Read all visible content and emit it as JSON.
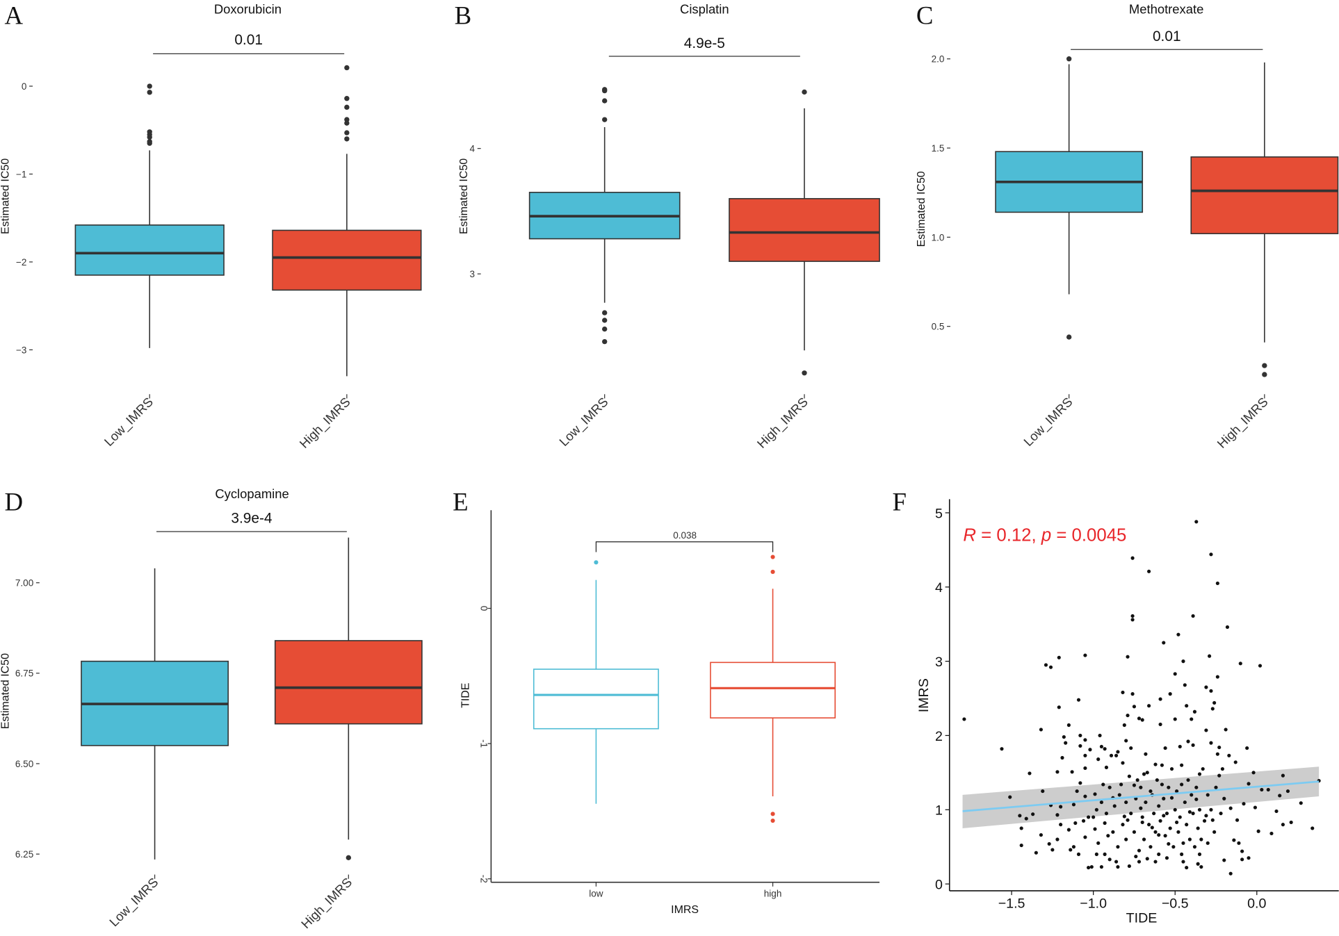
{
  "colors": {
    "low": "#4ebcd5",
    "high": "#e64d35",
    "outline": "#333333",
    "points": "#111111",
    "fit": "#7ccbf2",
    "band": "#c8c8c8",
    "annotation": "#e8262a"
  },
  "chart_data": [
    {
      "panel": "A",
      "type": "box",
      "title": "Doxorubicin",
      "ylabel": "Estimated IC50",
      "xlabel": "",
      "categories": [
        "Low_IMRS",
        "High_IMRS"
      ],
      "yticks": [
        {
          "v": 0,
          "label": "0"
        },
        {
          "v": -1,
          "label": "−1"
        },
        {
          "v": -2,
          "label": "−2"
        },
        {
          "v": -3,
          "label": "−3"
        }
      ],
      "boxes": [
        {
          "q1": -2.15,
          "median": -1.9,
          "q3": -1.58,
          "lower": -2.98,
          "upper": -0.73,
          "outliers": [
            0.0,
            -0.07,
            -0.52,
            -0.55,
            -0.58,
            -0.63,
            -0.65
          ]
        },
        {
          "q1": -2.32,
          "median": -1.95,
          "q3": -1.64,
          "lower": -3.3,
          "upper": -0.77,
          "outliers": [
            0.21,
            -0.14,
            -0.24,
            -0.38,
            -0.42,
            -0.53,
            -0.6
          ]
        }
      ],
      "pvalue": "0.01",
      "style": "filled"
    },
    {
      "panel": "B",
      "type": "box",
      "title": "Cisplatin",
      "ylabel": "Estimated IC50",
      "xlabel": "",
      "categories": [
        "Low_IMRS",
        "High_IMRS"
      ],
      "yticks": [
        {
          "v": 4,
          "label": "4"
        },
        {
          "v": 3,
          "label": "3"
        }
      ],
      "boxes": [
        {
          "q1": 3.28,
          "median": 3.46,
          "q3": 3.65,
          "lower": 2.77,
          "upper": 4.17,
          "outliers": [
            4.47,
            4.46,
            4.38,
            4.23,
            2.69,
            2.63,
            2.56,
            2.46
          ]
        },
        {
          "q1": 3.1,
          "median": 3.33,
          "q3": 3.6,
          "lower": 2.39,
          "upper": 4.32,
          "outliers": [
            4.45,
            2.21
          ]
        }
      ],
      "pvalue": "4.9e-5",
      "style": "filled"
    },
    {
      "panel": "C",
      "type": "box",
      "title": "Methotrexate",
      "ylabel": "Estimated IC50",
      "xlabel": "",
      "categories": [
        "Low_IMRS",
        "High_IMRS"
      ],
      "yticks": [
        {
          "v": 2.0,
          "label": "2.0"
        },
        {
          "v": 1.5,
          "label": "1.5"
        },
        {
          "v": 1.0,
          "label": "1.0"
        },
        {
          "v": 0.5,
          "label": "0.5"
        }
      ],
      "boxes": [
        {
          "q1": 1.14,
          "median": 1.31,
          "q3": 1.48,
          "lower": 0.68,
          "upper": 1.97,
          "outliers": [
            2.0,
            0.44
          ]
        },
        {
          "q1": 1.02,
          "median": 1.26,
          "q3": 1.45,
          "lower": 0.41,
          "upper": 1.98,
          "outliers": [
            0.28,
            0.23
          ]
        }
      ],
      "pvalue": "0.01",
      "style": "filled"
    },
    {
      "panel": "D",
      "type": "box",
      "title": "Cyclopamine",
      "ylabel": "Estimated IC50",
      "xlabel": "",
      "categories": [
        "Low_IMRS",
        "High_IMRS"
      ],
      "yticks": [
        {
          "v": 7.0,
          "label": "7.00"
        },
        {
          "v": 6.75,
          "label": "6.75"
        },
        {
          "v": 6.5,
          "label": "6.50"
        },
        {
          "v": 6.25,
          "label": "6.25"
        }
      ],
      "boxes": [
        {
          "q1": 6.55,
          "median": 6.665,
          "q3": 6.783,
          "lower": 6.235,
          "upper": 7.04,
          "outliers": []
        },
        {
          "q1": 6.61,
          "median": 6.71,
          "q3": 6.84,
          "lower": 6.29,
          "upper": 7.125,
          "outliers": [
            6.24
          ]
        }
      ],
      "pvalue": "3.9e-4",
      "style": "filled"
    },
    {
      "panel": "E",
      "type": "box",
      "title": "",
      "ylabel": "TIDE",
      "xlabel": "IMRS",
      "categories": [
        "low",
        "high"
      ],
      "yticks": [
        {
          "v": 0,
          "label": "0"
        },
        {
          "v": -1,
          "label": "-1"
        },
        {
          "v": -2,
          "label": "-2"
        }
      ],
      "boxes": [
        {
          "q1": -0.89,
          "median": -0.64,
          "q3": -0.45,
          "lower": -1.445,
          "upper": 0.21,
          "outliers": [
            0.34
          ]
        },
        {
          "q1": -0.81,
          "median": -0.59,
          "q3": -0.4,
          "lower": -1.39,
          "upper": 0.145,
          "outliers": [
            0.38,
            0.27,
            -1.52,
            -1.57
          ]
        }
      ],
      "pvalue": "0.038",
      "style": "outline"
    },
    {
      "panel": "F",
      "type": "scatter",
      "title": "",
      "xlabel": "TIDE",
      "ylabel": "IMRS",
      "xlim": [
        -1.87,
        0.42
      ],
      "ylim": [
        -0.1,
        5.1
      ],
      "xticks": [
        {
          "v": -1.5,
          "label": "−1.5"
        },
        {
          "v": -1.0,
          "label": "−1.0"
        },
        {
          "v": -0.5,
          "label": "−0.5"
        },
        {
          "v": 0.0,
          "label": "0.0"
        }
      ],
      "yticks": [
        {
          "v": 0,
          "label": "0"
        },
        {
          "v": 1,
          "label": "1"
        },
        {
          "v": 2,
          "label": "2"
        },
        {
          "v": 3,
          "label": "3"
        },
        {
          "v": 4,
          "label": "4"
        },
        {
          "v": 5,
          "label": "5"
        }
      ],
      "annotation": {
        "r_sym": "R",
        "r_text": " = 0.12, ",
        "p_sym": "p",
        "p_text": " = 0.0045"
      },
      "fit": {
        "x": [
          -1.8,
          0.38
        ],
        "y": [
          0.98,
          1.38
        ],
        "ci_lower": [
          0.75,
          1.18
        ],
        "ci_upper": [
          1.2,
          1.58
        ]
      },
      "points": [
        [
          -1.79,
          2.22
        ],
        [
          -1.56,
          1.82
        ],
        [
          -1.51,
          1.17
        ],
        [
          -1.45,
          0.92
        ],
        [
          -1.44,
          0.75
        ],
        [
          -1.44,
          0.52
        ],
        [
          -1.41,
          0.88
        ],
        [
          -1.39,
          1.49
        ],
        [
          -1.37,
          0.94
        ],
        [
          -1.35,
          0.42
        ],
        [
          -1.32,
          2.08
        ],
        [
          -1.32,
          0.66
        ],
        [
          -1.31,
          1.25
        ],
        [
          -1.29,
          2.95
        ],
        [
          -1.26,
          2.92
        ],
        [
          -1.27,
          0.54
        ],
        [
          -1.26,
          1.06
        ],
        [
          -1.25,
          0.46
        ],
        [
          -1.22,
          1.51
        ],
        [
          -1.22,
          0.93
        ],
        [
          -1.22,
          0.6
        ],
        [
          -1.21,
          3.05
        ],
        [
          -1.21,
          2.38
        ],
        [
          -1.2,
          1.04
        ],
        [
          -1.2,
          0.8
        ],
        [
          -1.19,
          1.7
        ],
        [
          -1.18,
          1.98
        ],
        [
          -1.17,
          1.9
        ],
        [
          -1.15,
          2.14
        ],
        [
          -1.15,
          0.73
        ],
        [
          -1.14,
          0.46
        ],
        [
          -1.13,
          1.51
        ],
        [
          -1.12,
          0.5
        ],
        [
          -1.12,
          1.07
        ],
        [
          -1.11,
          0.82
        ],
        [
          -1.09,
          2.48
        ],
        [
          -1.09,
          0.4
        ],
        [
          -1.08,
          2.0
        ],
        [
          -1.08,
          1.36
        ],
        [
          -1.08,
          1.86
        ],
        [
          -1.05,
          3.08
        ],
        [
          -1.05,
          1.94
        ],
        [
          -1.05,
          1.73
        ],
        [
          -1.05,
          1.56
        ],
        [
          -1.05,
          1.18
        ],
        [
          -1.05,
          0.63
        ],
        [
          -1.03,
          0.9
        ],
        [
          -1.03,
          0.22
        ],
        [
          -1.02,
          1.81
        ],
        [
          -1.01,
          0.23
        ],
        [
          -0.99,
          1.21
        ],
        [
          -0.99,
          0.74
        ],
        [
          -0.98,
          0.4
        ],
        [
          -0.97,
          1.68
        ],
        [
          -0.96,
          2.0
        ],
        [
          -0.95,
          1.85
        ],
        [
          -0.95,
          0.23
        ],
        [
          -0.94,
          1.34
        ],
        [
          -0.93,
          1.82
        ],
        [
          -0.93,
          0.82
        ],
        [
          -0.92,
          1.57
        ],
        [
          -0.91,
          0.65
        ],
        [
          -0.9,
          0.33
        ],
        [
          -0.89,
          1.73
        ],
        [
          -0.88,
          1.16
        ],
        [
          -0.86,
          1.73
        ],
        [
          -0.85,
          1.78
        ],
        [
          -0.85,
          0.23
        ],
        [
          -0.83,
          1.34
        ],
        [
          -0.82,
          2.58
        ],
        [
          -0.82,
          1.63
        ],
        [
          -0.81,
          2.14
        ],
        [
          -0.81,
          0.91
        ],
        [
          -0.8,
          1.93
        ],
        [
          -0.79,
          3.06
        ],
        [
          -0.79,
          2.27
        ],
        [
          -0.79,
          0.86
        ],
        [
          -0.78,
          0.24
        ],
        [
          -0.77,
          1.83
        ],
        [
          -0.76,
          4.39
        ],
        [
          -0.76,
          3.61
        ],
        [
          -0.76,
          3.56
        ],
        [
          -0.76,
          2.56
        ],
        [
          -0.75,
          2.39
        ],
        [
          -0.75,
          1.33
        ],
        [
          -0.74,
          0.37
        ],
        [
          -0.73,
          1.4
        ],
        [
          -0.72,
          2.23
        ],
        [
          -0.71,
          1.02
        ],
        [
          -0.7,
          2.21
        ],
        [
          -0.7,
          0.83
        ],
        [
          -0.69,
          1.48
        ],
        [
          -0.68,
          1.75
        ],
        [
          -0.67,
          0.34
        ],
        [
          -0.66,
          4.21
        ],
        [
          -0.66,
          2.4
        ],
        [
          -0.65,
          1.25
        ],
        [
          -0.64,
          0.76
        ],
        [
          -0.62,
          1.61
        ],
        [
          -0.6,
          0.66
        ],
        [
          -0.59,
          2.49
        ],
        [
          -0.59,
          2.15
        ],
        [
          -0.58,
          1.34
        ],
        [
          -0.57,
          3.25
        ],
        [
          -0.57,
          0.92
        ],
        [
          -0.56,
          1.83
        ],
        [
          -0.54,
          0.54
        ],
        [
          -0.53,
          2.56
        ],
        [
          -0.52,
          1.16
        ],
        [
          -0.5,
          2.83
        ],
        [
          -0.5,
          2.22
        ],
        [
          -0.49,
          0.83
        ],
        [
          -0.48,
          3.36
        ],
        [
          -0.47,
          1.85
        ],
        [
          -0.46,
          1.34
        ],
        [
          -0.45,
          3.0
        ],
        [
          -0.44,
          2.68
        ],
        [
          -0.43,
          2.4
        ],
        [
          -0.43,
          0.22
        ],
        [
          -0.42,
          1.92
        ],
        [
          -0.41,
          0.97
        ],
        [
          -0.4,
          2.22
        ],
        [
          -0.39,
          3.61
        ],
        [
          -0.39,
          1.87
        ],
        [
          -0.38,
          2.32
        ],
        [
          -0.37,
          4.88
        ],
        [
          -0.37,
          1.14
        ],
        [
          -0.36,
          0.27
        ],
        [
          -0.35,
          1.48
        ],
        [
          -0.34,
          0.23
        ],
        [
          -0.31,
          2.65
        ],
        [
          -0.31,
          2.07
        ],
        [
          -0.31,
          0.92
        ],
        [
          -0.29,
          3.07
        ],
        [
          -0.28,
          4.44
        ],
        [
          -0.28,
          2.6
        ],
        [
          -0.28,
          1.9
        ],
        [
          -0.27,
          2.36
        ],
        [
          -0.27,
          0.86
        ],
        [
          -0.26,
          2.44
        ],
        [
          -0.24,
          4.05
        ],
        [
          -0.24,
          2.79
        ],
        [
          -0.24,
          1.75
        ],
        [
          -0.23,
          1.84
        ],
        [
          -0.23,
          1.46
        ],
        [
          -0.21,
          1.55
        ],
        [
          -0.2,
          0.32
        ],
        [
          -0.19,
          2.08
        ],
        [
          -0.18,
          3.46
        ],
        [
          -0.17,
          1.73
        ],
        [
          -0.16,
          0.14
        ],
        [
          -0.16,
          1.02
        ],
        [
          -0.14,
          0.59
        ],
        [
          -0.13,
          1.64
        ],
        [
          -0.12,
          0.86
        ],
        [
          -0.11,
          0.55
        ],
        [
          -0.1,
          2.97
        ],
        [
          -0.09,
          0.44
        ],
        [
          -0.09,
          0.33
        ],
        [
          -0.08,
          1.08
        ],
        [
          -0.06,
          1.83
        ],
        [
          -0.05,
          1.35
        ],
        [
          -0.05,
          0.35
        ],
        [
          -0.02,
          1.5
        ],
        [
          -0.01,
          1.03
        ],
        [
          0.01,
          0.71
        ],
        [
          0.02,
          2.94
        ],
        [
          0.03,
          1.27
        ],
        [
          0.07,
          1.27
        ],
        [
          0.09,
          0.68
        ],
        [
          0.12,
          0.98
        ],
        [
          0.14,
          1.19
        ],
        [
          0.16,
          1.46
        ],
        [
          0.16,
          0.8
        ],
        [
          0.19,
          1.25
        ],
        [
          0.21,
          0.83
        ],
        [
          0.27,
          1.09
        ],
        [
          0.34,
          0.75
        ],
        [
          0.38,
          1.39
        ],
        [
          -0.95,
          1.1
        ],
        [
          -0.92,
          0.95
        ],
        [
          -0.9,
          1.3
        ],
        [
          -0.88,
          0.7
        ],
        [
          -0.87,
          1.05
        ],
        [
          -0.85,
          0.5
        ],
        [
          -0.84,
          1.2
        ],
        [
          -0.82,
          0.8
        ],
        [
          -0.8,
          1.1
        ],
        [
          -0.8,
          0.6
        ],
        [
          -0.78,
          1.45
        ],
        [
          -0.77,
          0.95
        ],
        [
          -0.75,
          0.7
        ],
        [
          -0.74,
          1.15
        ],
        [
          -0.72,
          0.45
        ],
        [
          -0.71,
          1.3
        ],
        [
          -0.7,
          0.9
        ],
        [
          -0.69,
          0.6
        ],
        [
          -0.68,
          1.1
        ],
        [
          -0.67,
          1.5
        ],
        [
          -0.66,
          0.8
        ],
        [
          -0.65,
          0.5
        ],
        [
          -0.64,
          1.2
        ],
        [
          -0.63,
          0.95
        ],
        [
          -0.62,
          0.7
        ],
        [
          -0.61,
          1.4
        ],
        [
          -0.6,
          1.05
        ],
        [
          -0.6,
          0.4
        ],
        [
          -0.59,
          0.85
        ],
        [
          -0.58,
          1.6
        ],
        [
          -0.57,
          1.15
        ],
        [
          -0.56,
          0.65
        ],
        [
          -0.55,
          0.95
        ],
        [
          -0.54,
          1.3
        ],
        [
          -0.53,
          0.75
        ],
        [
          -0.52,
          1.55
        ],
        [
          -0.51,
          0.5
        ],
        [
          -0.5,
          1.0
        ],
        [
          -0.49,
          1.25
        ],
        [
          -0.48,
          0.7
        ],
        [
          -0.47,
          0.9
        ],
        [
          -0.46,
          1.6
        ],
        [
          -0.45,
          0.55
        ],
        [
          -0.44,
          1.1
        ],
        [
          -0.43,
          0.8
        ],
        [
          -0.42,
          1.4
        ],
        [
          -0.41,
          0.6
        ],
        [
          -0.4,
          1.2
        ],
        [
          -0.39,
          0.95
        ],
        [
          -0.38,
          0.5
        ],
        [
          -0.37,
          1.3
        ],
        [
          -0.36,
          0.75
        ],
        [
          -0.35,
          1.0
        ],
        [
          -0.34,
          0.6
        ],
        [
          -0.33,
          1.55
        ],
        [
          -0.32,
          0.85
        ],
        [
          -0.3,
          1.2
        ],
        [
          -0.3,
          0.55
        ],
        [
          -0.28,
          1.0
        ],
        [
          -0.26,
          0.7
        ],
        [
          -0.25,
          1.3
        ],
        [
          -0.22,
          0.95
        ],
        [
          -0.2,
          1.15
        ],
        [
          -1.0,
          0.9
        ],
        [
          -0.98,
          1.0
        ],
        [
          -0.97,
          0.55
        ],
        [
          -1.06,
          0.85
        ],
        [
          -1.1,
          1.25
        ],
        [
          -0.93,
          0.4
        ],
        [
          -0.86,
          0.3
        ],
        [
          -0.72,
          0.3
        ],
        [
          -0.62,
          0.3
        ],
        [
          -0.55,
          0.35
        ],
        [
          -0.46,
          0.4
        ],
        [
          -0.35,
          0.4
        ],
        [
          -0.45,
          0.3
        ]
      ]
    }
  ]
}
